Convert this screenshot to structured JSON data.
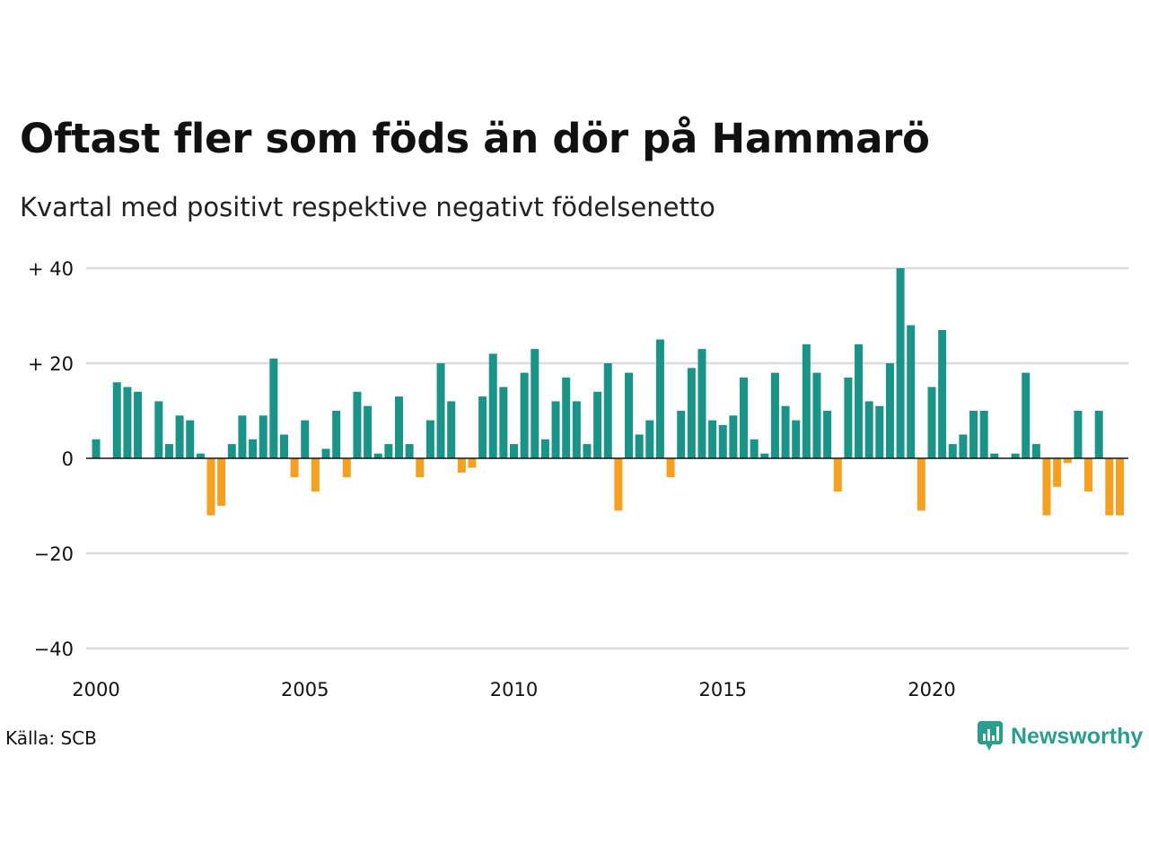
{
  "title": "Oftast fler som föds än dör på Hammarö",
  "subtitle": "Kvartal med positivt respektive negativt födelsenetto",
  "source": "Källa: SCB",
  "brand": {
    "name": "Newsworthy",
    "color": "#2a9d8f",
    "icon": "newsworthy-logo-icon"
  },
  "colors": {
    "positive": "#1a9488",
    "negative": "#f4a020",
    "grid": "#dddddd",
    "zero": "#111111"
  },
  "chart_data": {
    "type": "bar",
    "title": "Oftast fler som föds än dör på Hammarö",
    "subtitle": "Kvartal med positivt respektive negativt födelsenetto",
    "xlabel": "",
    "ylabel": "",
    "ylim": [
      -40,
      40
    ],
    "xlim": [
      2000,
      2024.75
    ],
    "grid": true,
    "y_ticks": [
      {
        "value": 40,
        "label": "+ 40"
      },
      {
        "value": 20,
        "label": "+ 20"
      },
      {
        "value": 0,
        "label": "0"
      },
      {
        "value": -20,
        "label": "−20"
      },
      {
        "value": -40,
        "label": "−40"
      }
    ],
    "x_ticks": [
      {
        "value": 2000,
        "label": "2000"
      },
      {
        "value": 2005,
        "label": "2005"
      },
      {
        "value": 2010,
        "label": "2010"
      },
      {
        "value": 2015,
        "label": "2015"
      },
      {
        "value": 2020,
        "label": "2020"
      }
    ],
    "start_year": 2000,
    "quarters_per_year": 4,
    "values": [
      4,
      0,
      16,
      15,
      14,
      0,
      12,
      3,
      9,
      8,
      1,
      -12,
      -10,
      3,
      9,
      4,
      9,
      21,
      5,
      -4,
      8,
      -7,
      2,
      10,
      -4,
      14,
      11,
      1,
      3,
      13,
      3,
      -4,
      8,
      20,
      12,
      -3,
      -2,
      13,
      22,
      15,
      3,
      18,
      23,
      4,
      12,
      17,
      12,
      3,
      14,
      20,
      -11,
      18,
      5,
      8,
      25,
      -4,
      10,
      19,
      23,
      8,
      7,
      9,
      17,
      4,
      1,
      18,
      11,
      8,
      24,
      18,
      10,
      -7,
      17,
      24,
      12,
      11,
      20,
      40,
      28,
      -11,
      15,
      27,
      3,
      5,
      10,
      10,
      1,
      0,
      1,
      18,
      3,
      -12,
      -6,
      -1,
      10,
      -7,
      10,
      -12,
      -12
    ]
  }
}
